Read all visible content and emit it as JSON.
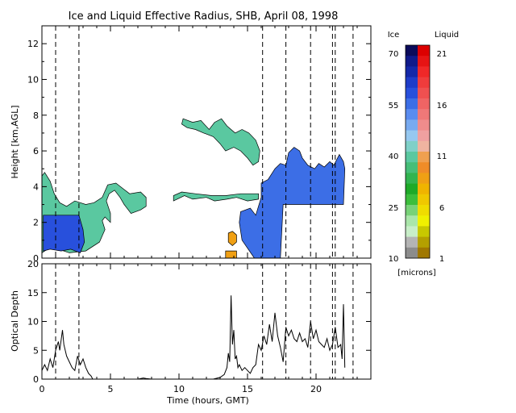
{
  "chart_data": [
    {
      "type": "heatmap",
      "title": "Ice and Liquid Effective Radius, SHB, April 08, 1998",
      "xlabel": "",
      "ylabel": "Height [km,AGL]",
      "xlim": [
        0,
        24
      ],
      "ylim": [
        0,
        13
      ],
      "x_ticks": [
        "0",
        "5",
        "10",
        "15",
        "20"
      ],
      "y_ticks": [
        "0",
        "2",
        "4",
        "6",
        "8",
        "10",
        "12"
      ],
      "dashed_times": [
        1.0,
        2.7,
        16.1,
        17.8,
        19.6,
        21.2,
        21.4,
        22.7
      ],
      "colorbar": {
        "ice_header": "Ice",
        "liquid_header": "Liquid",
        "ice_labels": [
          "70",
          "55",
          "40",
          "25",
          "10"
        ],
        "liquid_labels": [
          "21",
          "16",
          "11",
          "6",
          "1"
        ],
        "units": "[microns]",
        "ice_colors": [
          "#0b0b5a",
          "#101a8a",
          "#1428a8",
          "#1e3cc8",
          "#2850dc",
          "#3c6ee6",
          "#5a8cf0",
          "#78aaf0",
          "#96c8f0",
          "#7fd0c8",
          "#5ac8a0",
          "#46be78",
          "#32b450",
          "#1eaa28",
          "#3cbe3c",
          "#78d278",
          "#aae6aa",
          "#c8eec8",
          "#b4b4b4",
          "#8c8c8c"
        ],
        "liquid_colors": [
          "#dc0000",
          "#e61414",
          "#f02828",
          "#f03c3c",
          "#f05050",
          "#f06464",
          "#f07878",
          "#f08c8c",
          "#f0a0a0",
          "#f0b4a0",
          "#f0a050",
          "#f08c28",
          "#f0a014",
          "#f0b400",
          "#f0c800",
          "#f0dc00",
          "#f0f000",
          "#c8c800",
          "#b4a000",
          "#a07800"
        ]
      },
      "regions": [
        {
          "label": "ice",
          "color": "#5ac8a0",
          "polygon": [
            [
              0,
              0.3
            ],
            [
              0.6,
              0.6
            ],
            [
              1.2,
              0.5
            ],
            [
              2,
              0.3
            ],
            [
              3.2,
              0.4
            ],
            [
              4.2,
              0.9
            ],
            [
              4.6,
              1.6
            ],
            [
              4.4,
              2.1
            ],
            [
              4.6,
              2.3
            ],
            [
              5,
              2.0
            ],
            [
              5,
              2.5
            ],
            [
              4.7,
              3.2
            ],
            [
              4.9,
              3.6
            ],
            [
              5.3,
              3.8
            ],
            [
              5.7,
              3.4
            ],
            [
              6,
              3.0
            ],
            [
              6.5,
              2.5
            ],
            [
              7.2,
              2.7
            ],
            [
              7.6,
              2.9
            ],
            [
              7.6,
              3.4
            ],
            [
              7.2,
              3.7
            ],
            [
              6.4,
              3.6
            ],
            [
              5.9,
              3.9
            ],
            [
              5.4,
              4.2
            ],
            [
              4.8,
              4.1
            ],
            [
              4.4,
              3.4
            ],
            [
              3.8,
              3.1
            ],
            [
              3.2,
              3.0
            ],
            [
              2.4,
              3.2
            ],
            [
              1.8,
              2.9
            ],
            [
              1.3,
              3.1
            ],
            [
              0.9,
              3.6
            ],
            [
              0.6,
              4.3
            ],
            [
              0.2,
              4.8
            ],
            [
              0,
              4.6
            ]
          ]
        },
        {
          "label": "ice",
          "color": "#2850dc",
          "polygon": [
            [
              0.1,
              0.4
            ],
            [
              0.6,
              0.5
            ],
            [
              1.4,
              0.4
            ],
            [
              2.1,
              0.5
            ],
            [
              2.8,
              0.3
            ],
            [
              3.1,
              0.9
            ],
            [
              3.0,
              1.6
            ],
            [
              2.7,
              2.4
            ],
            [
              0.1,
              2.4
            ]
          ]
        },
        {
          "label": "ice",
          "color": "#5ac8a0",
          "polygon": [
            [
              10.3,
              7.8
            ],
            [
              11.0,
              7.6
            ],
            [
              11.6,
              7.7
            ],
            [
              12.2,
              7.2
            ],
            [
              12.6,
              7.6
            ],
            [
              13.1,
              7.8
            ],
            [
              13.5,
              7.4
            ],
            [
              14.1,
              7.0
            ],
            [
              14.6,
              7.2
            ],
            [
              15.1,
              7.0
            ],
            [
              15.6,
              6.6
            ],
            [
              15.9,
              6.0
            ],
            [
              15.8,
              5.4
            ],
            [
              15.4,
              5.2
            ],
            [
              15.0,
              5.6
            ],
            [
              14.5,
              6.0
            ],
            [
              14.0,
              6.2
            ],
            [
              13.4,
              6.0
            ],
            [
              13.0,
              6.4
            ],
            [
              12.5,
              6.8
            ],
            [
              11.8,
              7.0
            ],
            [
              11.2,
              7.2
            ],
            [
              10.6,
              7.3
            ],
            [
              10.2,
              7.5
            ]
          ]
        },
        {
          "label": "ice",
          "color": "#3c6ee6",
          "polygon": [
            [
              14.5,
              2.6
            ],
            [
              15.2,
              2.8
            ],
            [
              15.6,
              2.4
            ],
            [
              16.0,
              3.4
            ],
            [
              16.0,
              4.2
            ],
            [
              16.5,
              4.4
            ],
            [
              17.0,
              5.0
            ],
            [
              17.4,
              5.3
            ],
            [
              17.8,
              5.2
            ],
            [
              18.0,
              5.9
            ],
            [
              18.4,
              6.2
            ],
            [
              18.8,
              6.0
            ],
            [
              19.0,
              5.6
            ],
            [
              19.4,
              5.2
            ],
            [
              19.9,
              5.0
            ],
            [
              20.2,
              5.3
            ],
            [
              20.6,
              5.1
            ],
            [
              21.0,
              5.4
            ],
            [
              21.3,
              5.2
            ],
            [
              21.7,
              5.8
            ],
            [
              22.0,
              5.4
            ],
            [
              22.1,
              5.0
            ],
            [
              22.0,
              3.0
            ],
            [
              17.6,
              3.0
            ],
            [
              17.4,
              0.0
            ],
            [
              15.5,
              0.0
            ],
            [
              14.6,
              1.0
            ],
            [
              14.4,
              2.0
            ]
          ]
        },
        {
          "label": "ice",
          "color": "#5ac8a0",
          "polygon": [
            [
              9.6,
              3.2
            ],
            [
              10.4,
              3.5
            ],
            [
              11.0,
              3.3
            ],
            [
              12.0,
              3.4
            ],
            [
              12.6,
              3.2
            ],
            [
              13.5,
              3.3
            ],
            [
              14.2,
              3.4
            ],
            [
              15.0,
              3.2
            ],
            [
              15.8,
              3.3
            ],
            [
              15.8,
              3.6
            ],
            [
              14.5,
              3.6
            ],
            [
              13.4,
              3.5
            ],
            [
              12.4,
              3.5
            ],
            [
              11.2,
              3.6
            ],
            [
              10.2,
              3.7
            ],
            [
              9.6,
              3.5
            ]
          ]
        },
        {
          "label": "liquid",
          "color": "#f0a014",
          "polygon": [
            [
              13.6,
              1.4
            ],
            [
              13.9,
              1.5
            ],
            [
              14.2,
              1.3
            ],
            [
              14.2,
              0.9
            ],
            [
              13.9,
              0.7
            ],
            [
              13.6,
              0.9
            ]
          ]
        },
        {
          "label": "liquid",
          "color": "#f0a014",
          "polygon": [
            [
              13.4,
              0.0
            ],
            [
              14.2,
              0.0
            ],
            [
              14.2,
              0.4
            ],
            [
              13.4,
              0.4
            ]
          ]
        }
      ]
    },
    {
      "type": "line",
      "xlabel": "Time (hours, GMT)",
      "ylabel": "Optical Depth",
      "xlim": [
        0,
        24
      ],
      "ylim": [
        0,
        20
      ],
      "x_ticks": [
        "0",
        "5",
        "10",
        "15",
        "20"
      ],
      "y_ticks": [
        "0",
        "5",
        "10",
        "15",
        "20"
      ],
      "series": [
        {
          "x": [
            0,
            0.2,
            0.4,
            0.6,
            0.8,
            1.0,
            1.2,
            1.3,
            1.5,
            1.6,
            1.8,
            2.0,
            2.2,
            2.4,
            2.6,
            2.8,
            3.0,
            3.2,
            3.4,
            3.6,
            3.7,
            7.0,
            7.4,
            7.6,
            8.0,
            10.5,
            12.5,
            13.0,
            13.3,
            13.5,
            13.6,
            13.7,
            13.8,
            13.9,
            14.0,
            14.1,
            14.2,
            14.3,
            14.4,
            14.6,
            14.8,
            15.0,
            15.2,
            15.4,
            15.6,
            15.8,
            16.0,
            16.2,
            16.4,
            16.6,
            16.8,
            17.0,
            17.2,
            17.4,
            17.6,
            17.8,
            18.0,
            18.2,
            18.4,
            18.6,
            18.8,
            19.0,
            19.2,
            19.4,
            19.6,
            19.8,
            20.0,
            20.2,
            20.4,
            20.6,
            20.8,
            21.0,
            21.2,
            21.4,
            21.6,
            21.8,
            21.9,
            22.0,
            22.1
          ],
          "y": [
            1.5,
            2.5,
            1.5,
            3.5,
            2.0,
            5.0,
            6.5,
            5.0,
            8.5,
            6.0,
            4.0,
            3.0,
            2.0,
            1.5,
            4.0,
            2.5,
            3.5,
            2.0,
            1.0,
            0.5,
            0.0,
            0.0,
            0.2,
            0.1,
            0.0,
            0.0,
            0.0,
            0.3,
            0.8,
            2.0,
            4.5,
            3.0,
            14.5,
            6.0,
            8.5,
            3.5,
            4.0,
            2.0,
            2.5,
            1.5,
            2.0,
            1.5,
            1.0,
            2.0,
            2.5,
            6.0,
            5.0,
            7.5,
            6.0,
            9.5,
            6.5,
            11.5,
            7.5,
            5.5,
            3.0,
            9.0,
            7.5,
            8.5,
            7.0,
            6.5,
            8.0,
            6.5,
            7.0,
            5.5,
            10.0,
            7.0,
            8.5,
            6.5,
            6.0,
            5.5,
            7.0,
            5.0,
            6.0,
            9.0,
            5.5,
            6.0,
            3.5,
            13.0,
            2.0
          ]
        }
      ]
    }
  ]
}
